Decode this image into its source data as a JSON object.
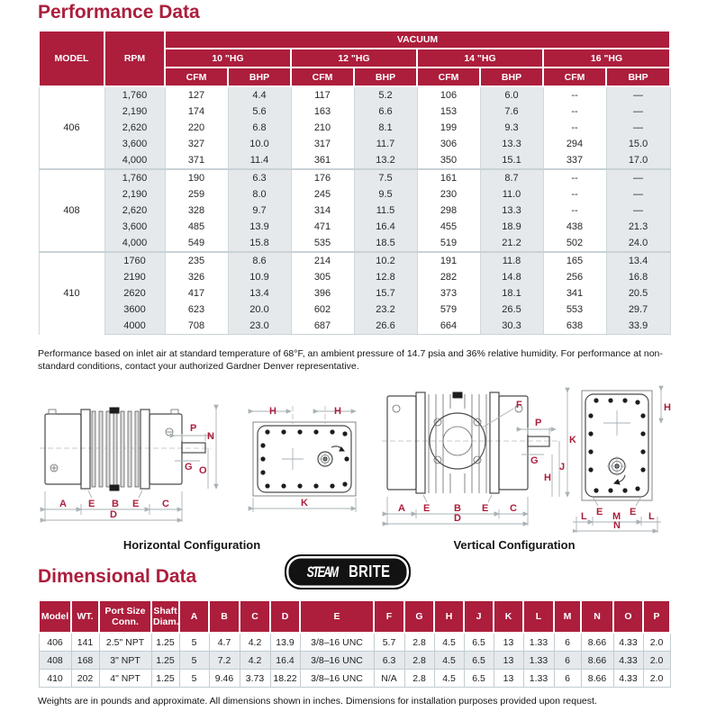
{
  "page": {
    "performance_title": "Performance Data",
    "dimensional_title": "Dimensional Data",
    "performance_note": "Performance based on inlet air at standard temperature of 68°F, an ambient pressure of 14.7 psia and 36% relative humidity. For performance at non-standard conditions, contact your authorized Gardner Denver representative.",
    "dimensional_note": "Weights are in pounds and approximate. All dimensions shown in inches. Dimensions for installation purposes provided upon request."
  },
  "colors": {
    "accent_red": "#ac1e3c",
    "shade": "#e5e9eb"
  },
  "performance_table": {
    "headers": {
      "model": "MODEL",
      "rpm": "RPM",
      "vacuum": "VACUUM",
      "pressures": [
        "10 \"HG",
        "12 \"HG",
        "14 \"HG",
        "16 \"HG"
      ],
      "cfm": "CFM",
      "bhp": "BHP"
    },
    "groups": [
      {
        "model": "406",
        "rows": [
          {
            "rpm": "1,760",
            "values": [
              "127",
              "4.4",
              "117",
              "5.2",
              "106",
              "6.0",
              "--",
              "—"
            ]
          },
          {
            "rpm": "2,190",
            "values": [
              "174",
              "5.6",
              "163",
              "6.6",
              "153",
              "7.6",
              "--",
              "—"
            ]
          },
          {
            "rpm": "2,620",
            "values": [
              "220",
              "6.8",
              "210",
              "8.1",
              "199",
              "9.3",
              "--",
              "—"
            ]
          },
          {
            "rpm": "3,600",
            "values": [
              "327",
              "10.0",
              "317",
              "11.7",
              "306",
              "13.3",
              "294",
              "15.0"
            ]
          },
          {
            "rpm": "4,000",
            "values": [
              "371",
              "11.4",
              "361",
              "13.2",
              "350",
              "15.1",
              "337",
              "17.0"
            ]
          }
        ]
      },
      {
        "model": "408",
        "rows": [
          {
            "rpm": "1,760",
            "values": [
              "190",
              "6.3",
              "176",
              "7.5",
              "161",
              "8.7",
              "--",
              "—"
            ]
          },
          {
            "rpm": "2,190",
            "values": [
              "259",
              "8.0",
              "245",
              "9.5",
              "230",
              "11.0",
              "--",
              "—"
            ]
          },
          {
            "rpm": "2,620",
            "values": [
              "328",
              "9.7",
              "314",
              "11.5",
              "298",
              "13.3",
              "--",
              "—"
            ]
          },
          {
            "rpm": "3,600",
            "values": [
              "485",
              "13.9",
              "471",
              "16.4",
              "455",
              "18.9",
              "438",
              "21.3"
            ]
          },
          {
            "rpm": "4,000",
            "values": [
              "549",
              "15.8",
              "535",
              "18.5",
              "519",
              "21.2",
              "502",
              "24.0"
            ]
          }
        ]
      },
      {
        "model": "410",
        "rows": [
          {
            "rpm": "1760",
            "values": [
              "235",
              "8.6",
              "214",
              "10.2",
              "191",
              "11.8",
              "165",
              "13.4"
            ]
          },
          {
            "rpm": "2190",
            "values": [
              "326",
              "10.9",
              "305",
              "12.8",
              "282",
              "14.8",
              "256",
              "16.8"
            ]
          },
          {
            "rpm": "2620",
            "values": [
              "417",
              "13.4",
              "396",
              "15.7",
              "373",
              "18.1",
              "341",
              "20.5"
            ]
          },
          {
            "rpm": "3600",
            "values": [
              "623",
              "20.0",
              "602",
              "23.2",
              "579",
              "26.5",
              "553",
              "29.7"
            ]
          },
          {
            "rpm": "4000",
            "values": [
              "708",
              "23.0",
              "687",
              "26.6",
              "664",
              "30.3",
              "638",
              "33.9"
            ]
          }
        ]
      }
    ]
  },
  "diagrams": {
    "horizontal_caption": "Horizontal Configuration",
    "vertical_caption": "Vertical Configuration",
    "labels": {
      "A": "A",
      "B": "B",
      "C": "C",
      "D": "D",
      "E": "E",
      "F": "F",
      "G": "G",
      "H": "H",
      "J": "J",
      "K": "K",
      "L": "L",
      "M": "M",
      "N": "N",
      "O": "O",
      "P": "P"
    }
  },
  "logo": {
    "steam": "STEAM",
    "brite": "BRITE"
  },
  "dimensional_table": {
    "headers": [
      "Model",
      "WT.",
      "Port Size\nConn.",
      "Shaft\nDiam.",
      "A",
      "B",
      "C",
      "D",
      "E",
      "F",
      "G",
      "H",
      "J",
      "K",
      "L",
      "M",
      "N",
      "O",
      "P"
    ],
    "rows": [
      [
        "406",
        "141",
        "2.5\" NPT",
        "1.25",
        "5",
        "4.7",
        "4.2",
        "13.9",
        "3/8–16 UNC",
        "5.7",
        "2.8",
        "4.5",
        "6.5",
        "13",
        "1.33",
        "6",
        "8.66",
        "4.33",
        "2.0"
      ],
      [
        "408",
        "168",
        "3\" NPT",
        "1.25",
        "5",
        "7.2",
        "4.2",
        "16.4",
        "3/8–16 UNC",
        "6.3",
        "2.8",
        "4.5",
        "6.5",
        "13",
        "1.33",
        "6",
        "8.66",
        "4.33",
        "2.0"
      ],
      [
        "410",
        "202",
        "4\" NPT",
        "1.25",
        "5",
        "9.46",
        "3.73",
        "18.22",
        "3/8–16 UNC",
        "N/A",
        "2.8",
        "4.5",
        "6.5",
        "13",
        "1.33",
        "6",
        "8.66",
        "4.33",
        "2.0"
      ]
    ]
  }
}
